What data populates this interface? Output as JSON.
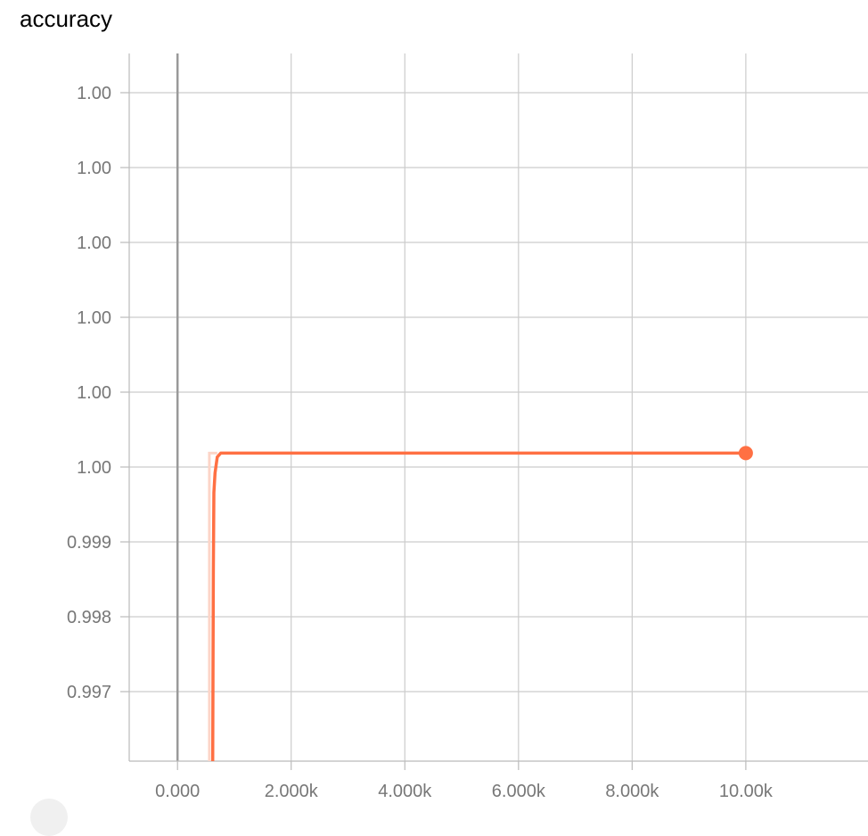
{
  "chart_data": {
    "type": "line",
    "title": "accuracy",
    "xlabel": "",
    "ylabel": "",
    "x_ticks": [
      0,
      2000,
      4000,
      6000,
      8000,
      10000
    ],
    "x_tick_labels": [
      "0.000",
      "2.000k",
      "4.000k",
      "6.000k",
      "8.000k",
      "10.00k"
    ],
    "y_tick_labels": [
      "1.00",
      "1.00",
      "1.00",
      "1.00",
      "1.00",
      "1.00",
      "0.999",
      "0.998",
      "0.997"
    ],
    "xlim": [
      -850,
      12150
    ],
    "ylim": [
      0.9961,
      1.00506
    ],
    "grid": true,
    "series": [
      {
        "color": "#ff7043",
        "raw_color": "#fcd5c8",
        "values_smoothed": [
          {
            "x": 620,
            "y": 0.9961
          },
          {
            "x": 630,
            "y": 0.9985
          },
          {
            "x": 640,
            "y": 0.9995
          },
          {
            "x": 660,
            "y": 0.99975
          },
          {
            "x": 700,
            "y": 0.99995
          },
          {
            "x": 760,
            "y": 1.0
          },
          {
            "x": 10000,
            "y": 1.0
          }
        ],
        "values_raw": [
          {
            "x": 560,
            "y": 0.9961
          },
          {
            "x": 560,
            "y": 1.0
          },
          {
            "x": 700,
            "y": 1.0
          }
        ],
        "last_point": {
          "x": 10000,
          "y": 1.0
        }
      }
    ]
  }
}
